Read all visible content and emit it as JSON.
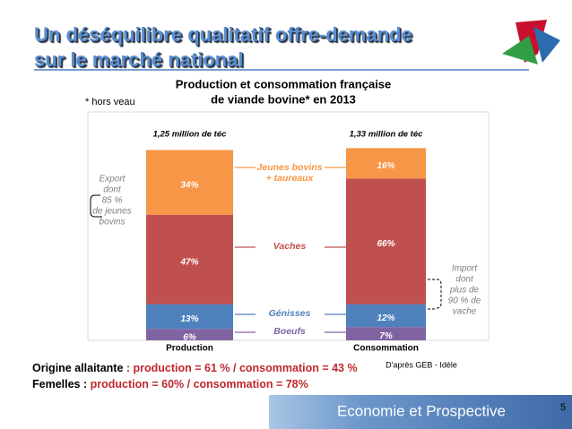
{
  "header": {
    "title": [
      "Un déséquilibre qualitatif offre-demande",
      "sur le marché national"
    ]
  },
  "chart_data": {
    "type": "bar",
    "stacked": true,
    "title": [
      "Production et consommation française",
      "de viande bovine* en 2013"
    ],
    "note": "* hors veau",
    "categories": [
      "Production",
      "Consommation"
    ],
    "totals": [
      "1,25 million de téc",
      "1,33 million de téc"
    ],
    "ylim": [
      0,
      120
    ],
    "series": [
      {
        "name": "Boeufs",
        "color": "#8064a2",
        "values": [
          6,
          7
        ],
        "value_labels": [
          "6%",
          "7%"
        ]
      },
      {
        "name": "Génisses",
        "color": "#4f81bd",
        "values": [
          13,
          12
        ],
        "value_labels": [
          "13%",
          "12%"
        ]
      },
      {
        "name": "Vaches",
        "color": "#c0504d",
        "values": [
          47,
          66
        ],
        "value_labels": [
          "47%",
          "66%"
        ]
      },
      {
        "name": "Jeunes bovins + taureaux",
        "color": "#f79646",
        "values": [
          34,
          16
        ],
        "value_labels": [
          "34%",
          "16%"
        ]
      }
    ],
    "annotations": [
      [
        "Export",
        "dont",
        "85 %",
        "de jeunes",
        "bovins"
      ],
      [
        "Import",
        "dont",
        "plus de",
        "90 % de",
        "vache"
      ]
    ],
    "source": "D'après GEB - Idèle"
  },
  "footer": {
    "lines": [
      [
        "Origine allaitante",
        " : production = 61 % / consommation = 43 %"
      ],
      [
        "Femelles : ",
        "production = 60% / consommation = 78%"
      ]
    ],
    "band": "Economie et Prospective",
    "page": "5"
  }
}
